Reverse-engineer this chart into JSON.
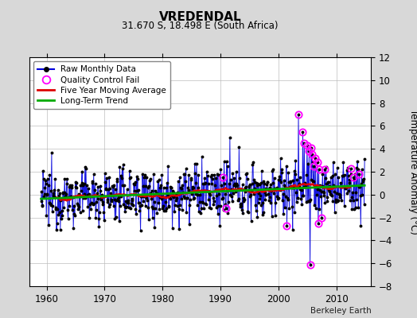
{
  "title": "VREDENDAL",
  "subtitle": "31.670 S, 18.498 E (South Africa)",
  "ylabel": "Temperature Anomaly (°C)",
  "credit": "Berkeley Earth",
  "ylim": [
    -8,
    12
  ],
  "xlim": [
    1957,
    2016
  ],
  "yticks": [
    -8,
    -6,
    -4,
    -2,
    0,
    2,
    4,
    6,
    8,
    10,
    12
  ],
  "xticks": [
    1960,
    1970,
    1980,
    1990,
    2000,
    2010
  ],
  "bg_color": "#d8d8d8",
  "plot_bg_color": "#ffffff",
  "raw_color": "#0000dd",
  "raw_marker_color": "#000000",
  "qc_color": "#ff00ff",
  "moving_avg_color": "#dd0000",
  "trend_color": "#00aa00",
  "grid_color": "#bbbbbb"
}
